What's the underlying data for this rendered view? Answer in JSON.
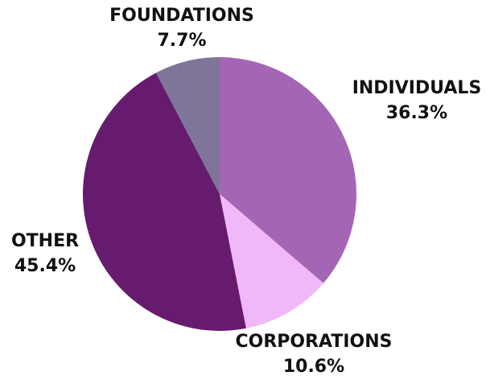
{
  "chart_data": {
    "type": "pie",
    "categories": [
      "INDIVIDUALS",
      "CORPORATIONS",
      "OTHER",
      "FOUNDATIONS"
    ],
    "values": [
      36.3,
      10.6,
      45.4,
      7.7
    ],
    "value_labels": [
      "36.3%",
      "10.6%",
      "45.4%",
      "7.7%"
    ],
    "colors": [
      "#a466b4",
      "#f0b8f8",
      "#661b6e",
      "#7e7599"
    ]
  }
}
